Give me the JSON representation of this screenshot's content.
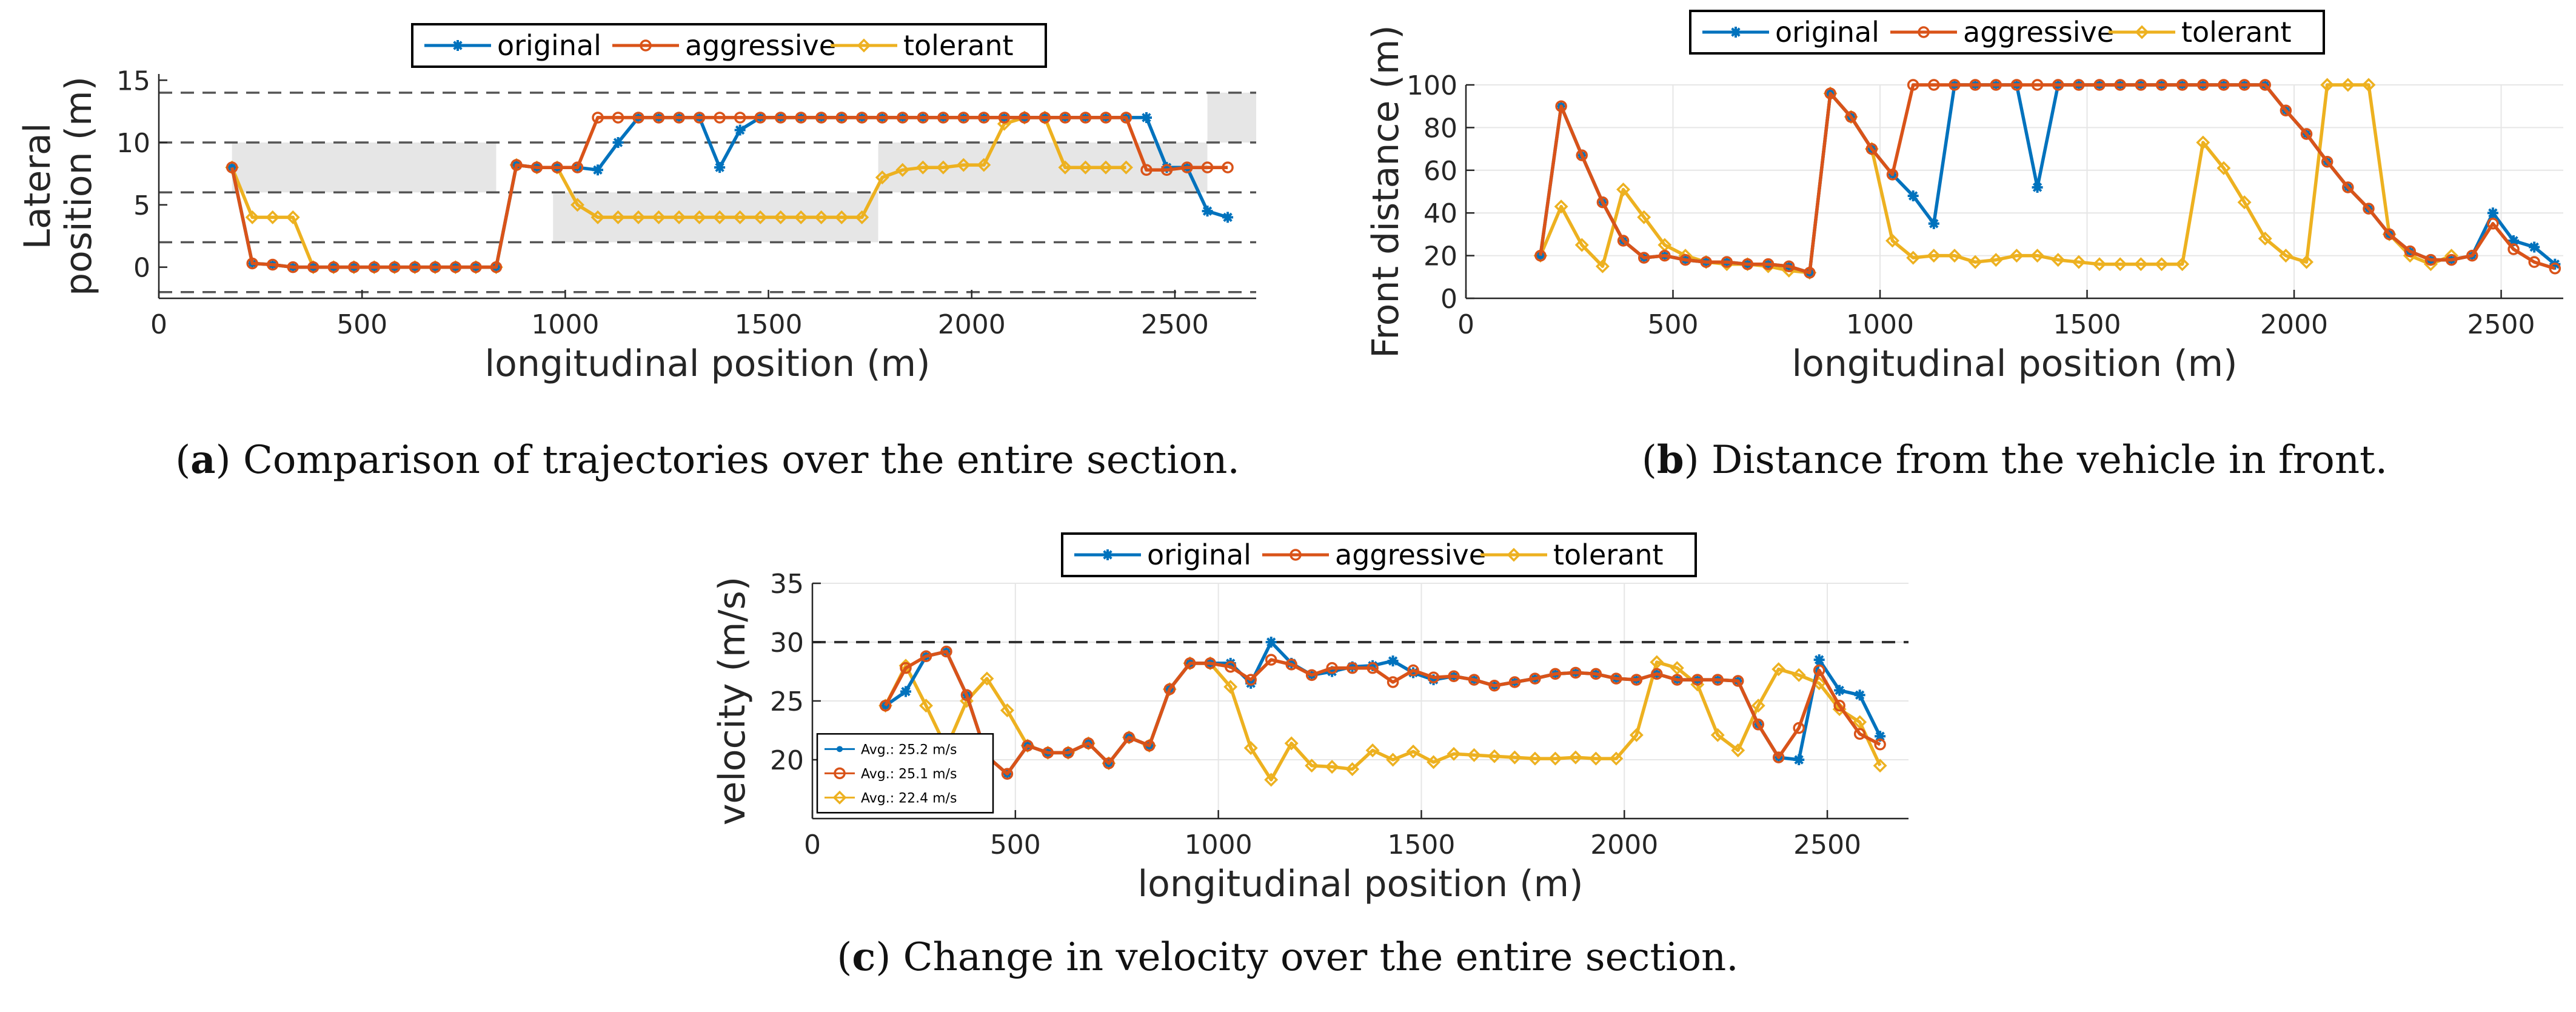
{
  "colors": {
    "original": "#0072BD",
    "aggressive": "#D95319",
    "tolerant": "#EDB120",
    "grid": "#e6e6e6",
    "lane": "#555555",
    "shade": "#e6e6e6"
  },
  "chart_data": [
    {
      "id": "a",
      "type": "line",
      "caption_label": "a",
      "caption_text": "Comparison of trajectories over the entire section.",
      "xlabel": "longitudinal position (m)",
      "ylabel_lines": [
        "Lateral",
        "position (m)"
      ],
      "xlim": [
        0,
        2700
      ],
      "ylim": [
        -2.5,
        15.5
      ],
      "xticks": [
        0,
        500,
        1000,
        1500,
        2000,
        2500
      ],
      "yticks": [
        0,
        5,
        10,
        15
      ],
      "lane_lines": [
        -2,
        2,
        6,
        10,
        14
      ],
      "shaded_regions": [
        {
          "x": [
            180,
            830
          ],
          "y": [
            6,
            10
          ]
        },
        {
          "x": [
            970,
            1770
          ],
          "y": [
            2,
            6
          ]
        },
        {
          "x": [
            1770,
            2580
          ],
          "y": [
            6,
            10
          ]
        },
        {
          "x": [
            2580,
            2700
          ],
          "y": [
            10,
            14
          ]
        }
      ],
      "legend": [
        "original",
        "aggressive",
        "tolerant"
      ],
      "x": [
        180,
        230,
        280,
        330,
        380,
        430,
        480,
        530,
        580,
        630,
        680,
        730,
        780,
        830,
        880,
        930,
        980,
        1030,
        1080,
        1130,
        1180,
        1230,
        1280,
        1330,
        1380,
        1430,
        1480,
        1530,
        1580,
        1630,
        1680,
        1730,
        1780,
        1830,
        1880,
        1930,
        1980,
        2030,
        2080,
        2130,
        2180,
        2230,
        2280,
        2330,
        2380,
        2430,
        2480,
        2530,
        2580,
        2630
      ],
      "series": [
        {
          "name": "original",
          "values": [
            8,
            0.3,
            0.2,
            0,
            0,
            0,
            0,
            0,
            0,
            0,
            0,
            0,
            0,
            0,
            8.2,
            8,
            8,
            8,
            7.8,
            10,
            12,
            12,
            12,
            12,
            8,
            11,
            12,
            12,
            12,
            12,
            12,
            12,
            12,
            12,
            12,
            12,
            12,
            12,
            12,
            12,
            12,
            12,
            12,
            12,
            12,
            12,
            8,
            8,
            4.5,
            4
          ]
        },
        {
          "name": "aggressive",
          "values": [
            8,
            0.3,
            0.2,
            0,
            0,
            0,
            0,
            0,
            0,
            0,
            0,
            0,
            0,
            0,
            8.2,
            8,
            8,
            8,
            12,
            12,
            12,
            12,
            12,
            12,
            12,
            12,
            12,
            12,
            12,
            12,
            12,
            12,
            12,
            12,
            12,
            12,
            12,
            12,
            12,
            12,
            12,
            12,
            12,
            12,
            12,
            7.8,
            7.8,
            8,
            8,
            8
          ]
        },
        {
          "name": "tolerant",
          "values": [
            8,
            4,
            4,
            4,
            0,
            0,
            0,
            0,
            0,
            0,
            0,
            0,
            0,
            0,
            8.2,
            8,
            8,
            5,
            4,
            4,
            4,
            4,
            4,
            4,
            4,
            4,
            4,
            4,
            4,
            4,
            4,
            4,
            7.2,
            7.8,
            8,
            8,
            8.2,
            8.2,
            11.5,
            12,
            12,
            8,
            8,
            8,
            8,
            null,
            null,
            null,
            null,
            null
          ]
        }
      ]
    },
    {
      "id": "b",
      "type": "line",
      "caption_label": "b",
      "caption_text": "Distance from the vehicle in front.",
      "xlabel": "longitudinal position (m)",
      "ylabel_lines": [
        "Front distance (m)"
      ],
      "xlim": [
        0,
        2650
      ],
      "ylim": [
        0,
        100
      ],
      "xticks": [
        0,
        500,
        1000,
        1500,
        2000,
        2500
      ],
      "yticks": [
        0,
        20,
        40,
        60,
        80,
        100
      ],
      "legend": [
        "original",
        "aggressive",
        "tolerant"
      ],
      "x": [
        180,
        230,
        280,
        330,
        380,
        430,
        480,
        530,
        580,
        630,
        680,
        730,
        780,
        830,
        880,
        930,
        980,
        1030,
        1080,
        1130,
        1180,
        1230,
        1280,
        1330,
        1380,
        1430,
        1480,
        1530,
        1580,
        1630,
        1680,
        1730,
        1780,
        1830,
        1880,
        1930,
        1980,
        2030,
        2080,
        2130,
        2180,
        2230,
        2280,
        2330,
        2380,
        2430,
        2480,
        2530,
        2580,
        2630
      ],
      "series": [
        {
          "name": "original",
          "values": [
            20,
            90,
            67,
            45,
            27,
            19,
            20,
            18,
            17,
            17,
            16,
            16,
            15,
            12,
            96,
            85,
            70,
            58,
            48,
            35,
            100,
            100,
            100,
            100,
            52,
            100,
            100,
            100,
            100,
            100,
            100,
            100,
            100,
            100,
            100,
            100,
            88,
            77,
            64,
            52,
            42,
            30,
            22,
            18,
            18,
            20,
            40,
            27,
            24,
            16
          ]
        },
        {
          "name": "aggressive",
          "values": [
            20,
            90,
            67,
            45,
            27,
            19,
            20,
            18,
            17,
            17,
            16,
            16,
            15,
            12,
            96,
            85,
            70,
            58,
            100,
            100,
            100,
            100,
            100,
            100,
            100,
            100,
            100,
            100,
            100,
            100,
            100,
            100,
            100,
            100,
            100,
            100,
            88,
            77,
            64,
            52,
            42,
            30,
            22,
            18,
            18,
            20,
            35,
            23,
            17,
            14
          ]
        },
        {
          "name": "tolerant",
          "values": [
            20,
            43,
            25,
            15,
            51,
            38,
            25,
            20,
            17,
            16,
            16,
            15,
            13,
            12,
            96,
            85,
            70,
            27,
            19,
            20,
            20,
            17,
            18,
            20,
            20,
            18,
            17,
            16,
            16,
            16,
            16,
            16,
            73,
            61,
            45,
            28,
            20,
            17,
            100,
            100,
            100,
            30,
            20,
            16,
            20,
            null,
            null,
            null,
            null,
            null
          ]
        }
      ]
    },
    {
      "id": "c",
      "type": "line",
      "caption_label": "c",
      "caption_text": "Change in velocity over the entire section.",
      "xlabel": "longitudinal position (m)",
      "ylabel_lines": [
        "velocity (m/s)"
      ],
      "xlim": [
        0,
        2700
      ],
      "ylim": [
        15,
        35
      ],
      "xticks": [
        0,
        500,
        1000,
        1500,
        2000,
        2500
      ],
      "yticks": [
        20,
        25,
        30,
        35
      ],
      "speed_limit": 30,
      "legend": [
        "original",
        "aggressive",
        "tolerant"
      ],
      "averages": [
        "Avg.: 25.2 m/s",
        "Avg.: 25.1 m/s",
        "Avg.: 22.4 m/s"
      ],
      "x": [
        180,
        230,
        280,
        330,
        380,
        430,
        480,
        530,
        580,
        630,
        680,
        730,
        780,
        830,
        880,
        930,
        980,
        1030,
        1080,
        1130,
        1180,
        1230,
        1280,
        1330,
        1380,
        1430,
        1480,
        1530,
        1580,
        1630,
        1680,
        1730,
        1780,
        1830,
        1880,
        1930,
        1980,
        2030,
        2080,
        2130,
        2180,
        2230,
        2280,
        2330,
        2380,
        2430,
        2480,
        2530,
        2580,
        2630
      ],
      "series": [
        {
          "name": "original",
          "values": [
            24.6,
            25.8,
            28.8,
            29.2,
            25.5,
            20.3,
            18.8,
            21.2,
            20.6,
            20.6,
            21.4,
            19.7,
            21.9,
            21.2,
            26,
            28.2,
            28.2,
            28.2,
            26.5,
            30,
            28.2,
            27.2,
            27.5,
            27.9,
            28,
            28.4,
            27.4,
            26.8,
            27.1,
            26.8,
            26.3,
            26.6,
            26.9,
            27.3,
            27.4,
            27.3,
            26.9,
            26.8,
            27.3,
            26.8,
            26.8,
            26.8,
            26.7,
            23,
            20.2,
            20,
            28.5,
            25.9,
            25.5,
            22
          ]
        },
        {
          "name": "aggressive",
          "values": [
            24.6,
            27.8,
            28.8,
            29.2,
            25.5,
            20.3,
            18.8,
            21.2,
            20.6,
            20.6,
            21.4,
            19.7,
            21.9,
            21.2,
            26,
            28.2,
            28.2,
            27.9,
            26.8,
            28.5,
            28.1,
            27.2,
            27.8,
            27.8,
            27.8,
            26.6,
            27.6,
            27,
            27.1,
            26.8,
            26.3,
            26.6,
            26.9,
            27.3,
            27.4,
            27.3,
            26.9,
            26.8,
            27.3,
            26.8,
            26.8,
            26.8,
            26.7,
            23,
            20.2,
            22.7,
            27.6,
            24.6,
            22.2,
            21.3
          ]
        },
        {
          "name": "tolerant",
          "values": [
            24.6,
            28,
            24.6,
            21,
            25,
            26.9,
            24.2,
            21.2,
            20.6,
            20.6,
            21.4,
            19.7,
            21.9,
            21.2,
            26,
            28.2,
            28.2,
            26.2,
            21,
            18.3,
            21.4,
            19.5,
            19.4,
            19.2,
            20.8,
            20,
            20.7,
            19.8,
            20.5,
            20.4,
            20.3,
            20.2,
            20.1,
            20.1,
            20.2,
            20.1,
            20.1,
            22.1,
            28.3,
            27.8,
            26.4,
            22.1,
            20.8,
            24.6,
            27.7,
            27.2,
            26.5,
            24.3,
            23.2,
            19.5
          ]
        }
      ]
    }
  ]
}
